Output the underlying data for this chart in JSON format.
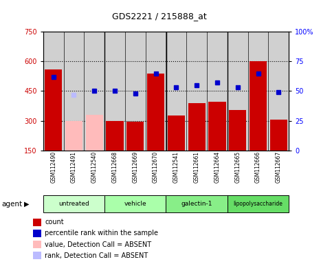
{
  "title": "GDS2221 / 215888_at",
  "samples": [
    "GSM112490",
    "GSM112491",
    "GSM112540",
    "GSM112668",
    "GSM112669",
    "GSM112670",
    "GSM112541",
    "GSM112661",
    "GSM112664",
    "GSM112665",
    "GSM112666",
    "GSM112667"
  ],
  "bar_values": [
    560,
    300,
    330,
    300,
    295,
    540,
    325,
    390,
    395,
    355,
    600,
    305
  ],
  "bar_colors": [
    "#cc0000",
    "#ffbbbb",
    "#ffbbbb",
    "#cc0000",
    "#cc0000",
    "#cc0000",
    "#cc0000",
    "#cc0000",
    "#cc0000",
    "#cc0000",
    "#cc0000",
    "#cc0000"
  ],
  "rank_values": [
    62,
    47,
    50,
    50,
    48,
    65,
    53,
    55,
    57,
    53,
    65,
    49
  ],
  "rank_colors": [
    "#0000cc",
    "#bbbbff",
    "#0000cc",
    "#0000cc",
    "#0000cc",
    "#0000cc",
    "#0000cc",
    "#0000cc",
    "#0000cc",
    "#0000cc",
    "#0000cc",
    "#0000cc"
  ],
  "groups": [
    {
      "label": "untreated",
      "start": 0,
      "end": 3,
      "color": "#ccffcc"
    },
    {
      "label": "vehicle",
      "start": 3,
      "end": 6,
      "color": "#aaffaa"
    },
    {
      "label": "galectin-1",
      "start": 6,
      "end": 9,
      "color": "#88ee88"
    },
    {
      "label": "lipopolysaccharide",
      "start": 9,
      "end": 12,
      "color": "#66dd66"
    }
  ],
  "group_dividers": [
    2.5,
    5.5,
    8.5
  ],
  "ylim_left": [
    150,
    750
  ],
  "ylim_right": [
    0,
    100
  ],
  "yticks_left": [
    150,
    300,
    450,
    600,
    750
  ],
  "yticks_right": [
    0,
    25,
    50,
    75,
    100
  ],
  "hlines": [
    300,
    450,
    600
  ],
  "legend_items": [
    {
      "color": "#cc0000",
      "label": "count"
    },
    {
      "color": "#0000cc",
      "label": "percentile rank within the sample"
    },
    {
      "color": "#ffbbbb",
      "label": "value, Detection Call = ABSENT"
    },
    {
      "color": "#bbbbff",
      "label": "rank, Detection Call = ABSENT"
    }
  ]
}
